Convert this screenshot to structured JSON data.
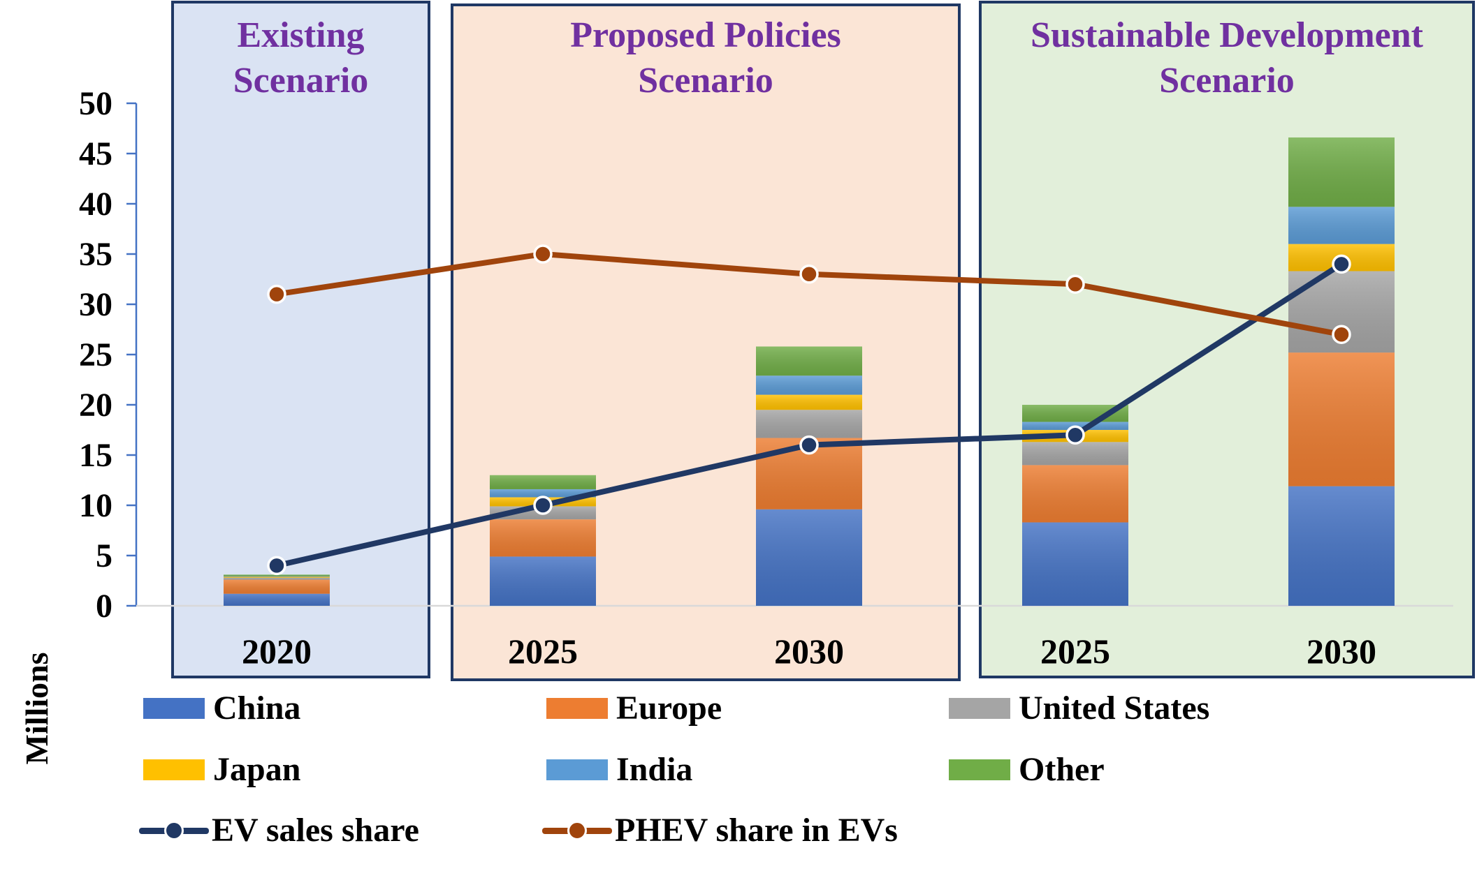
{
  "chart_data": {
    "type": "bar",
    "ylabel": "Millions",
    "ylim": [
      0,
      50
    ],
    "yticks": [
      0,
      5,
      10,
      15,
      20,
      25,
      30,
      35,
      40,
      45,
      50
    ],
    "categories": [
      "2020",
      "2025",
      "2030",
      "2025",
      "2030"
    ],
    "scenarios": [
      {
        "name": "Existing\nScenario",
        "lines": [
          "Existing",
          "Scenario"
        ],
        "start": 0,
        "end": 0,
        "color": "#dae3f3"
      },
      {
        "name": "Proposed Policies Scenario",
        "lines": [
          "Proposed Policies",
          "Scenario"
        ],
        "start": 1,
        "end": 2,
        "color": "#fbe5d6"
      },
      {
        "name": "Sustainable Development Scenario",
        "lines": [
          "Sustainable Development",
          "Scenario"
        ],
        "start": 3,
        "end": 4,
        "color": "#e2efda"
      }
    ],
    "series": [
      {
        "name": "China",
        "color": "#4472c4",
        "values": [
          1.2,
          4.9,
          9.6,
          8.3,
          11.9
        ]
      },
      {
        "name": "Europe",
        "color": "#ed7d31",
        "values": [
          1.4,
          3.7,
          7.1,
          5.7,
          13.3
        ]
      },
      {
        "name": "United States",
        "color": "#a5a5a5",
        "values": [
          0.2,
          1.3,
          2.8,
          2.3,
          8.1
        ]
      },
      {
        "name": "Japan",
        "color": "#ffc000",
        "values": [
          0.1,
          0.9,
          1.5,
          1.2,
          2.7
        ]
      },
      {
        "name": "India",
        "color": "#5b9bd5",
        "values": [
          0.05,
          0.8,
          1.9,
          0.8,
          3.7
        ]
      },
      {
        "name": "Other",
        "color": "#70ad47",
        "values": [
          0.15,
          1.4,
          2.9,
          1.7,
          6.9
        ]
      }
    ],
    "lines": [
      {
        "name": "EV sales share",
        "color": "#203864",
        "values": [
          4,
          10,
          16,
          17,
          34
        ]
      },
      {
        "name": "PHEV share in EVs",
        "color": "#a0440c",
        "values": [
          31,
          35,
          33,
          32,
          27
        ]
      }
    ]
  }
}
